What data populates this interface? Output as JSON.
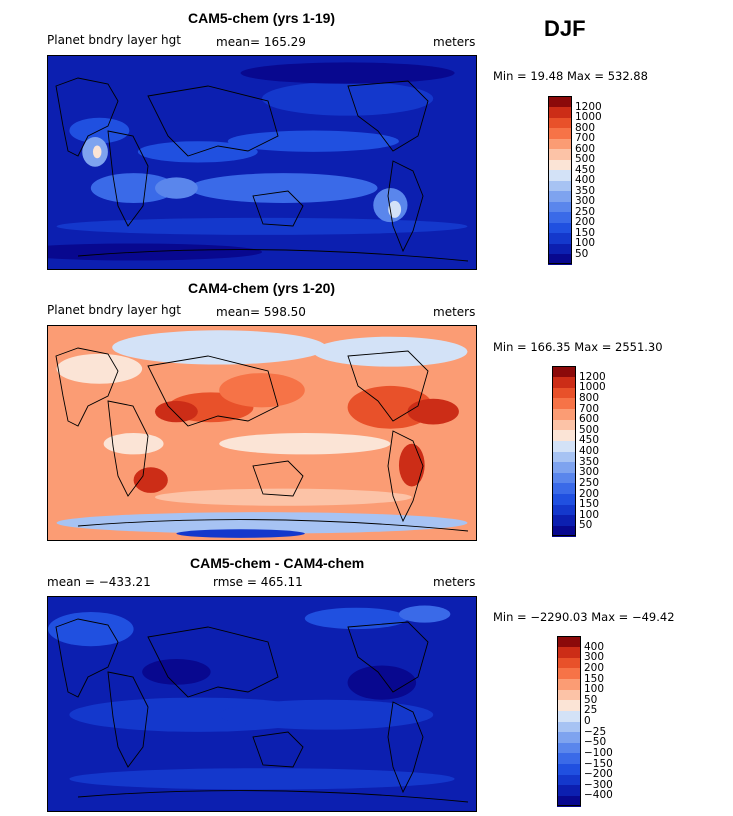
{
  "season": "DJF",
  "chart_data": [
    {
      "type": "heatmap",
      "title": "CAM5-chem (yrs 1-19)",
      "variable": "Planet bndry layer hgt",
      "mean_label": "mean=",
      "mean_value": "165.29",
      "units": "meters",
      "min_label": "Min =",
      "min_value": "19.48",
      "max_label": "Max =",
      "max_value": "532.88",
      "levels": [
        "50",
        "100",
        "150",
        "200",
        "250",
        "300",
        "350",
        "400",
        "450",
        "500",
        "600",
        "700",
        "800",
        "1000",
        "1200"
      ],
      "colors": [
        "#08088f",
        "#0c1fb0",
        "#1438cc",
        "#2050e0",
        "#3a6ae8",
        "#5a86ec",
        "#7ea3ef",
        "#a7c3f3",
        "#d3e2f7",
        "#fbe4d6",
        "#fcc3a7",
        "#fb9c74",
        "#f67347",
        "#e8512a",
        "#cc2d17",
        "#8b0a0a"
      ],
      "base_class": 1,
      "blobs": [
        {
          "x": 0.12,
          "y": 0.35,
          "rx": 0.07,
          "ry": 0.06,
          "c": 3
        },
        {
          "x": 0.35,
          "y": 0.45,
          "rx": 0.14,
          "ry": 0.05,
          "c": 3
        },
        {
          "x": 0.62,
          "y": 0.4,
          "rx": 0.2,
          "ry": 0.05,
          "c": 3
        },
        {
          "x": 0.55,
          "y": 0.62,
          "rx": 0.22,
          "ry": 0.07,
          "c": 4
        },
        {
          "x": 0.2,
          "y": 0.62,
          "rx": 0.1,
          "ry": 0.07,
          "c": 4
        },
        {
          "x": 0.5,
          "y": 0.8,
          "rx": 0.48,
          "ry": 0.04,
          "c": 2
        },
        {
          "x": 0.7,
          "y": 0.2,
          "rx": 0.2,
          "ry": 0.08,
          "c": 2
        },
        {
          "x": 0.11,
          "y": 0.45,
          "rx": 0.03,
          "ry": 0.07,
          "c": 6
        },
        {
          "x": 0.115,
          "y": 0.45,
          "rx": 0.01,
          "ry": 0.03,
          "c": 9
        },
        {
          "x": 0.8,
          "y": 0.7,
          "rx": 0.04,
          "ry": 0.08,
          "c": 5
        },
        {
          "x": 0.81,
          "y": 0.72,
          "rx": 0.015,
          "ry": 0.04,
          "c": 8
        },
        {
          "x": 0.3,
          "y": 0.62,
          "rx": 0.05,
          "ry": 0.05,
          "c": 5
        },
        {
          "x": 0.2,
          "y": 0.92,
          "rx": 0.3,
          "ry": 0.04,
          "c": 0
        },
        {
          "x": 0.7,
          "y": 0.08,
          "rx": 0.25,
          "ry": 0.05,
          "c": 0
        }
      ]
    },
    {
      "type": "heatmap",
      "title": "CAM4-chem (yrs 1-20)",
      "variable": "Planet bndry layer hgt",
      "mean_label": "mean=",
      "mean_value": "598.50",
      "units": "meters",
      "min_label": "Min =",
      "min_value": "166.35",
      "max_label": "Max =",
      "max_value": "2551.30",
      "levels": [
        "50",
        "100",
        "150",
        "200",
        "250",
        "300",
        "350",
        "400",
        "450",
        "500",
        "600",
        "700",
        "800",
        "1000",
        "1200"
      ],
      "colors": [
        "#08088f",
        "#0c1fb0",
        "#1438cc",
        "#2050e0",
        "#3a6ae8",
        "#5a86ec",
        "#7ea3ef",
        "#a7c3f3",
        "#d3e2f7",
        "#fbe4d6",
        "#fcc3a7",
        "#fb9c74",
        "#f67347",
        "#e8512a",
        "#cc2d17",
        "#8b0a0a"
      ],
      "base_class": 11,
      "blobs": [
        {
          "x": 0.4,
          "y": 0.1,
          "rx": 0.25,
          "ry": 0.08,
          "c": 8
        },
        {
          "x": 0.8,
          "y": 0.12,
          "rx": 0.18,
          "ry": 0.07,
          "c": 8
        },
        {
          "x": 0.12,
          "y": 0.2,
          "rx": 0.1,
          "ry": 0.07,
          "c": 9
        },
        {
          "x": 0.38,
          "y": 0.38,
          "rx": 0.1,
          "ry": 0.07,
          "c": 13
        },
        {
          "x": 0.3,
          "y": 0.4,
          "rx": 0.05,
          "ry": 0.05,
          "c": 14
        },
        {
          "x": 0.8,
          "y": 0.38,
          "rx": 0.1,
          "ry": 0.1,
          "c": 13
        },
        {
          "x": 0.9,
          "y": 0.4,
          "rx": 0.06,
          "ry": 0.06,
          "c": 14
        },
        {
          "x": 0.5,
          "y": 0.3,
          "rx": 0.1,
          "ry": 0.08,
          "c": 12
        },
        {
          "x": 0.6,
          "y": 0.55,
          "rx": 0.2,
          "ry": 0.05,
          "c": 9
        },
        {
          "x": 0.2,
          "y": 0.55,
          "rx": 0.07,
          "ry": 0.05,
          "c": 9
        },
        {
          "x": 0.85,
          "y": 0.65,
          "rx": 0.03,
          "ry": 0.1,
          "c": 14
        },
        {
          "x": 0.24,
          "y": 0.72,
          "rx": 0.04,
          "ry": 0.06,
          "c": 14
        },
        {
          "x": 0.5,
          "y": 0.92,
          "rx": 0.48,
          "ry": 0.05,
          "c": 7
        },
        {
          "x": 0.45,
          "y": 0.97,
          "rx": 0.15,
          "ry": 0.02,
          "c": 2
        },
        {
          "x": 0.55,
          "y": 0.8,
          "rx": 0.3,
          "ry": 0.04,
          "c": 10
        }
      ]
    },
    {
      "type": "heatmap",
      "title": "CAM5-chem - CAM4-chem",
      "mean_label": "mean =",
      "mean_value": "−433.21",
      "rmse_label": "rmse =",
      "rmse_value": "465.11",
      "units": "meters",
      "min_label": "Min =",
      "min_value": "−2290.03",
      "max_label": "Max =",
      "max_value": "−49.42",
      "levels": [
        "−400",
        "−300",
        "−200",
        "−150",
        "−100",
        "−50",
        "−25",
        "0",
        "25",
        "50",
        "100",
        "150",
        "200",
        "300",
        "400"
      ],
      "colors": [
        "#08088f",
        "#0c1fb0",
        "#1438cc",
        "#2050e0",
        "#3a6ae8",
        "#5a86ec",
        "#7ea3ef",
        "#a7c3f3",
        "#d3e2f7",
        "#fbe4d6",
        "#fcc3a7",
        "#fb9c74",
        "#f67347",
        "#e8512a",
        "#cc2d17",
        "#8b0a0a"
      ],
      "base_class": 1,
      "blobs": [
        {
          "x": 0.35,
          "y": 0.55,
          "rx": 0.3,
          "ry": 0.08,
          "c": 2
        },
        {
          "x": 0.65,
          "y": 0.55,
          "rx": 0.25,
          "ry": 0.07,
          "c": 2
        },
        {
          "x": 0.1,
          "y": 0.15,
          "rx": 0.1,
          "ry": 0.08,
          "c": 3
        },
        {
          "x": 0.72,
          "y": 0.1,
          "rx": 0.12,
          "ry": 0.05,
          "c": 3
        },
        {
          "x": 0.5,
          "y": 0.85,
          "rx": 0.45,
          "ry": 0.05,
          "c": 2
        },
        {
          "x": 0.88,
          "y": 0.08,
          "rx": 0.06,
          "ry": 0.04,
          "c": 4
        },
        {
          "x": 0.3,
          "y": 0.35,
          "rx": 0.08,
          "ry": 0.06,
          "c": 0
        },
        {
          "x": 0.78,
          "y": 0.4,
          "rx": 0.08,
          "ry": 0.08,
          "c": 0
        }
      ]
    }
  ]
}
